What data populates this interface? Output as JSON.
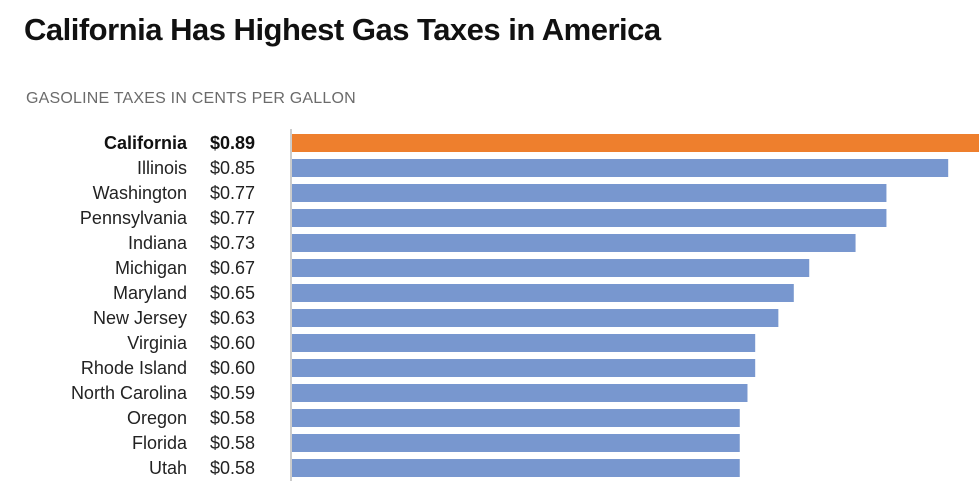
{
  "title": "California Has Highest Gas Taxes in America",
  "subtitle": "GASOLINE TAXES IN CENTS PER GALLON",
  "colors": {
    "highlight": "#ee7f2d",
    "bar": "#7897cf",
    "axis": "#cccccc"
  },
  "chart_data": {
    "type": "bar",
    "orientation": "horizontal",
    "title": "California Has Highest Gas Taxes in America",
    "subtitle": "GASOLINE TAXES IN CENTS PER GALLON",
    "xlabel": "",
    "ylabel": "",
    "grid": false,
    "legend": "none",
    "xlim": [
      0,
      0.89
    ],
    "categories": [
      "California",
      "Illinois",
      "Washington",
      "Pennsylvania",
      "Indiana",
      "Michigan",
      "Maryland",
      "New Jersey",
      "Virginia",
      "Rhode Island",
      "North Carolina",
      "Oregon",
      "Florida",
      "Utah"
    ],
    "values": [
      0.89,
      0.85,
      0.77,
      0.77,
      0.73,
      0.67,
      0.65,
      0.63,
      0.6,
      0.6,
      0.59,
      0.58,
      0.58,
      0.58
    ],
    "value_labels": [
      "$0.89",
      "$0.85",
      "$0.77",
      "$0.77",
      "$0.73",
      "$0.67",
      "$0.65",
      "$0.63",
      "$0.60",
      "$0.60",
      "$0.59",
      "$0.58",
      "$0.58",
      "$0.58"
    ],
    "highlight": "California"
  }
}
